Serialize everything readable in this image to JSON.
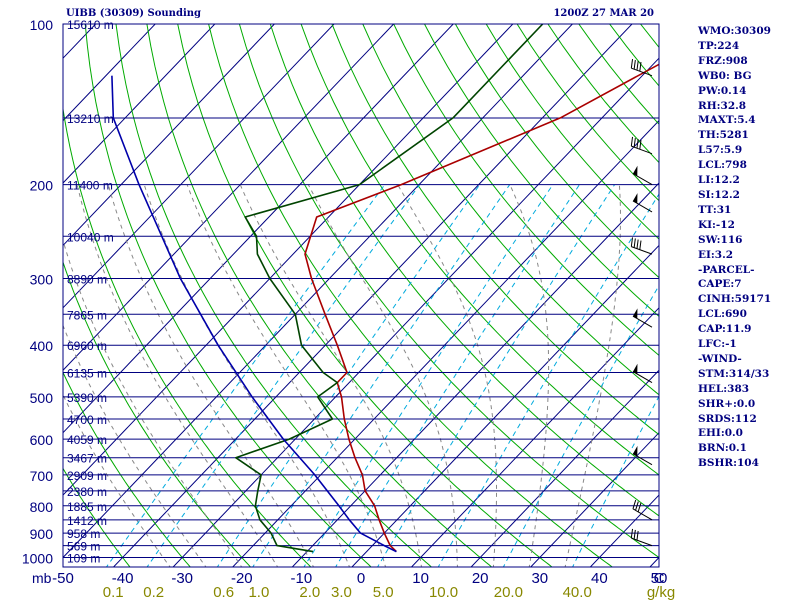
{
  "header": {
    "station": "UIBB (30309) Sounding",
    "time": "1200Z 27 MAR 20"
  },
  "indices": [
    "WMO:30309",
    "TP:224",
    "FRZ:908",
    "WB0: BG",
    "PW:0.14",
    "RH:32.8",
    "MAXT:5.4",
    "TH:5281",
    "L57:5.9",
    "LCL:798",
    "LI:12.2",
    "SI:12.2",
    "TT:31",
    "KI:-12",
    "SW:116",
    "EI:3.2",
    "-PARCEL-",
    "CAPE:7",
    "CINH:59171",
    "LCL:690",
    "CAP:11.9",
    "LFC:-1",
    "-WIND-",
    "STM:314/33",
    "HEL:383",
    "SHR+:0.0",
    "SRDS:112",
    "EHI:0.0",
    "BRN:0.1",
    "BSHR:104"
  ],
  "colors": {
    "frame": "#000080",
    "isobar": "#000080",
    "isotherm": "#000080",
    "dry_adiabat": "#00aa00",
    "moist_adiabat": "#888888",
    "mixing_ratio": "#00aadd",
    "temperature": "#aa0000",
    "dewpoint": "#004400",
    "parcel": "#0000aa",
    "wind": "#000000",
    "x_axis_text": "#000080",
    "mixing_ratio_text": "#888800"
  },
  "chart_data": {
    "type": "line",
    "title": "UIBB (30309) Sounding",
    "subtitle": "1200Z 27 MAR 20",
    "diagram": "skew-T log-P",
    "y_unit_label": "mb",
    "y_scale": "log",
    "y_ticks": [
      100,
      200,
      300,
      400,
      500,
      600,
      700,
      800,
      900,
      1000
    ],
    "x_ticks": [
      -50,
      -40,
      -30,
      -20,
      -10,
      0,
      10,
      20,
      30,
      40,
      50
    ],
    "x_range": [
      -50,
      50
    ],
    "x_unit": "C",
    "mixing_ratio_ticks": [
      "0.1",
      "0.2",
      "0.6",
      "1.0",
      "2.0",
      "3.0",
      "5.0",
      "10.0",
      "20.0",
      "40.0"
    ],
    "mixing_ratio_unit": "g/kg",
    "isobars": [
      100,
      150,
      200,
      250,
      300,
      350,
      400,
      450,
      500,
      550,
      600,
      650,
      700,
      750,
      800,
      850,
      900,
      950,
      1000
    ],
    "height_labels": [
      {
        "p": 100,
        "label": "15610 m"
      },
      {
        "p": 150,
        "label": "13210 m"
      },
      {
        "p": 200,
        "label": "11400 m"
      },
      {
        "p": 250,
        "label": "10040 m"
      },
      {
        "p": 300,
        "label": "8890 m"
      },
      {
        "p": 350,
        "label": "7865 m"
      },
      {
        "p": 400,
        "label": "6960 m"
      },
      {
        "p": 450,
        "label": "6135 m"
      },
      {
        "p": 500,
        "label": "5390 m"
      },
      {
        "p": 550,
        "label": "4700 m"
      },
      {
        "p": 600,
        "label": "4059 m"
      },
      {
        "p": 650,
        "label": "3467 m"
      },
      {
        "p": 700,
        "label": "2909 m"
      },
      {
        "p": 750,
        "label": "2380 m"
      },
      {
        "p": 800,
        "label": "1885 m"
      },
      {
        "p": 850,
        "label": "1412 m"
      },
      {
        "p": 900,
        "label": "958 m"
      },
      {
        "p": 950,
        "label": "569 m"
      },
      {
        "p": 1000,
        "label": "109 m"
      }
    ],
    "series": [
      {
        "key": "temperature",
        "points": [
          {
            "p": 975,
            "t": 5
          },
          {
            "p": 950,
            "t": 3
          },
          {
            "p": 900,
            "t": 0
          },
          {
            "p": 850,
            "t": -3
          },
          {
            "p": 800,
            "t": -6
          },
          {
            "p": 750,
            "t": -10
          },
          {
            "p": 700,
            "t": -13
          },
          {
            "p": 650,
            "t": -17
          },
          {
            "p": 600,
            "t": -21
          },
          {
            "p": 550,
            "t": -25
          },
          {
            "p": 500,
            "t": -29
          },
          {
            "p": 470,
            "t": -32
          },
          {
            "p": 450,
            "t": -32
          },
          {
            "p": 400,
            "t": -38
          },
          {
            "p": 350,
            "t": -45
          },
          {
            "p": 300,
            "t": -53
          },
          {
            "p": 270,
            "t": -58
          },
          {
            "p": 230,
            "t": -62
          },
          {
            "p": 200,
            "t": -53
          },
          {
            "p": 150,
            "t": -37
          },
          {
            "p": 100,
            "t": -23
          }
        ]
      },
      {
        "key": "dewpoint",
        "points": [
          {
            "p": 975,
            "t": -9
          },
          {
            "p": 950,
            "t": -16
          },
          {
            "p": 900,
            "t": -19
          },
          {
            "p": 850,
            "t": -23
          },
          {
            "p": 800,
            "t": -26
          },
          {
            "p": 750,
            "t": -28
          },
          {
            "p": 700,
            "t": -30
          },
          {
            "p": 650,
            "t": -37
          },
          {
            "p": 600,
            "t": -31
          },
          {
            "p": 550,
            "t": -27
          },
          {
            "p": 500,
            "t": -33
          },
          {
            "p": 470,
            "t": -32
          },
          {
            "p": 450,
            "t": -36
          },
          {
            "p": 400,
            "t": -44
          },
          {
            "p": 350,
            "t": -50
          },
          {
            "p": 300,
            "t": -60
          },
          {
            "p": 270,
            "t": -66
          },
          {
            "p": 250,
            "t": -69
          },
          {
            "p": 230,
            "t": -74
          },
          {
            "p": 200,
            "t": -60
          },
          {
            "p": 150,
            "t": -55
          },
          {
            "p": 100,
            "t": -55
          }
        ]
      },
      {
        "key": "parcel",
        "points": [
          {
            "p": 975,
            "t": 5
          },
          {
            "p": 950,
            "t": 2
          },
          {
            "p": 900,
            "t": -4
          },
          {
            "p": 850,
            "t": -8
          },
          {
            "p": 800,
            "t": -12
          },
          {
            "p": 700,
            "t": -21
          },
          {
            "p": 600,
            "t": -32
          },
          {
            "p": 500,
            "t": -44
          },
          {
            "p": 400,
            "t": -58
          },
          {
            "p": 300,
            "t": -75
          },
          {
            "p": 200,
            "t": -97
          },
          {
            "p": 150,
            "t": -112
          },
          {
            "p": 125,
            "t": -119
          }
        ]
      }
    ],
    "wind_barbs": [
      {
        "p": 125,
        "dir": 290,
        "kt": 40
      },
      {
        "p": 175,
        "dir": 290,
        "kt": 40
      },
      {
        "p": 200,
        "dir": 300,
        "kt": 50
      },
      {
        "p": 225,
        "dir": 300,
        "kt": 50
      },
      {
        "p": 270,
        "dir": 290,
        "kt": 40
      },
      {
        "p": 370,
        "dir": 300,
        "kt": 50
      },
      {
        "p": 470,
        "dir": 300,
        "kt": 50
      },
      {
        "p": 670,
        "dir": 300,
        "kt": 50
      },
      {
        "p": 850,
        "dir": 300,
        "kt": 30
      },
      {
        "p": 950,
        "dir": 290,
        "kt": 30
      }
    ]
  }
}
